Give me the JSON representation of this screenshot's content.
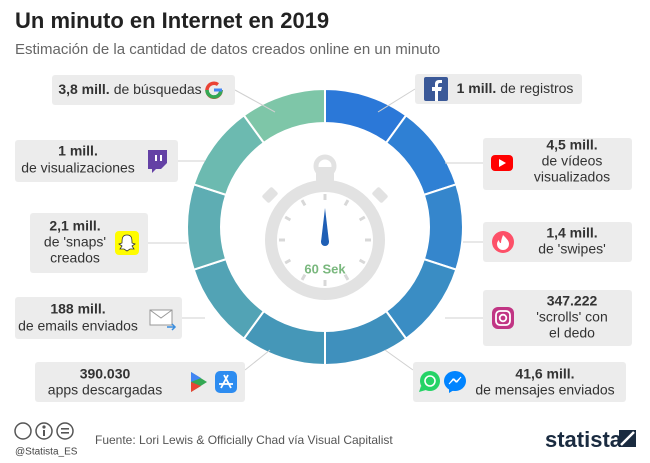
{
  "header": {
    "title": "Un minuto en Internet en 2019",
    "subtitle": "Estimación de la cantidad de datos creados online en un minuto"
  },
  "center_label": "60 Sek",
  "items": [
    {
      "bold": "3,8 mill.",
      "rest": [
        "de búsquedas"
      ]
    },
    {
      "bold": "1 mill.",
      "rest": [
        "de visualizaciones"
      ]
    },
    {
      "bold": "2,1 mill.",
      "rest": [
        "de 'snaps'",
        "creados"
      ]
    },
    {
      "bold": "188 mill.",
      "rest": [
        "de emails enviados"
      ]
    },
    {
      "bold": "390.030",
      "rest": [
        "apps descargadas"
      ]
    },
    {
      "bold": "1 mill.",
      "rest": [
        "de registros"
      ]
    },
    {
      "bold": "4,5 mill.",
      "rest": [
        "de vídeos",
        "visualizados"
      ]
    },
    {
      "bold": "1,4 mill.",
      "rest": [
        "de 'swipes'"
      ]
    },
    {
      "bold": "347.222",
      "rest": [
        "'scrolls' con",
        "el dedo"
      ]
    },
    {
      "bold": "41,6 mill.",
      "rest": [
        "de mensajes enviados"
      ]
    }
  ],
  "footer": {
    "handle": "@Statista_ES",
    "source": "Fuente: Lori Lewis & Officially Chad vía Visual Capitalist",
    "brand": "statista"
  }
}
